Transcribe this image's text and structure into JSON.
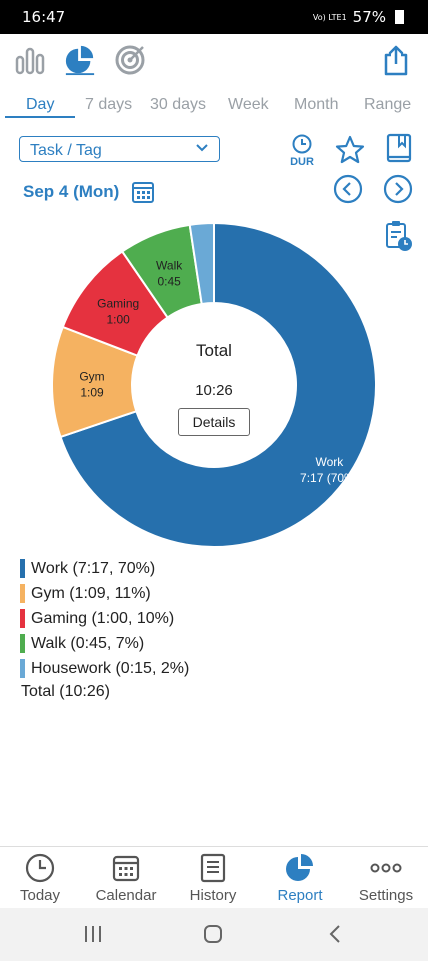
{
  "status": {
    "time": "16:47",
    "signal_text": "Vo) LTE1",
    "battery": "57%"
  },
  "tabs": [
    {
      "label": "Day",
      "active": true
    },
    {
      "label": "7 days"
    },
    {
      "label": "30 days"
    },
    {
      "label": "Week"
    },
    {
      "label": "Month"
    },
    {
      "label": "Range"
    }
  ],
  "selector": {
    "value": "Task / Tag"
  },
  "header": {
    "dur_label": "DUR",
    "date": "Sep 4 (Mon)"
  },
  "donut": {
    "center_title": "Total",
    "center_value": "10:26",
    "details_label": "Details"
  },
  "chart_data": {
    "type": "pie",
    "total": "10:26",
    "slices": [
      {
        "name": "Work",
        "label": "7:17 (70%)",
        "minutes": 437,
        "color": "#2670ad"
      },
      {
        "name": "Gym",
        "label": "1:09",
        "minutes": 69,
        "color": "#f5b261"
      },
      {
        "name": "Gaming",
        "label": "1:00",
        "minutes": 60,
        "color": "#e5323f"
      },
      {
        "name": "Walk",
        "label": "0:45",
        "minutes": 45,
        "color": "#4fad4f"
      },
      {
        "name": "Housework",
        "label": "",
        "minutes": 15,
        "color": "#6aa9d6"
      }
    ]
  },
  "legend": {
    "items": [
      {
        "text": "Work (7:17, 70%)",
        "color": "#2670ad"
      },
      {
        "text": "Gym (1:09, 11%)",
        "color": "#f5b261"
      },
      {
        "text": "Gaming (1:00, 10%)",
        "color": "#e5323f"
      },
      {
        "text": "Walk (0:45, 7%)",
        "color": "#4fad4f"
      },
      {
        "text": "Housework (0:15, 2%)",
        "color": "#6aa9d6"
      }
    ],
    "total": "Total (10:26)"
  },
  "nav": [
    {
      "label": "Today",
      "icon": "clock-icon"
    },
    {
      "label": "Calendar",
      "icon": "calendar-icon"
    },
    {
      "label": "History",
      "icon": "history-icon"
    },
    {
      "label": "Report",
      "icon": "pie-chart-icon",
      "active": true
    },
    {
      "label": "Settings",
      "icon": "more-icon"
    }
  ]
}
